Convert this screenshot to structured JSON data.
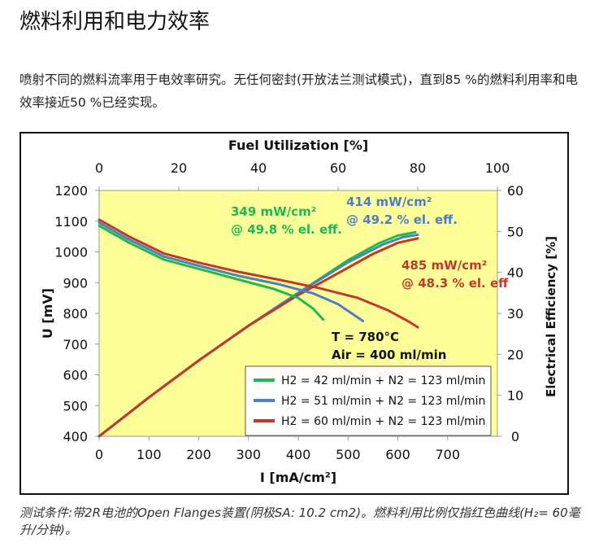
{
  "page": {
    "title": "燃料利用和电力效率",
    "intro": "喷射不同的燃料流率用于电效率研究。无任何密封(开放法兰测试模式)，直到85 %的燃料利用率和电效率接近50 %已经实现。",
    "caption": "测试条件:带2R电池的Open Flanges装置(阴极SA: 10.2 cm2)。燃料利用比例仅指红色曲线(H₂= 60毫升/分钟)。"
  },
  "chart_data": {
    "type": "line",
    "title": "",
    "xlabel": "I [mA/cm²]",
    "ylabel": "U [mV]",
    "y2label": "Electrical Efficiency [%]",
    "top_xlabel": "Fuel Utilization [%]",
    "xlim": [
      0,
      800
    ],
    "ylim": [
      400,
      1200
    ],
    "y2lim": [
      0,
      60
    ],
    "top_xlim": [
      0,
      100
    ],
    "x_ticks": [
      "0",
      "100",
      "200",
      "300",
      "400",
      "500",
      "600",
      "700"
    ],
    "y_ticks": [
      "400",
      "500",
      "600",
      "700",
      "800",
      "900",
      "1000",
      "1100",
      "1200"
    ],
    "y2_ticks": [
      "0",
      "10",
      "20",
      "30",
      "40",
      "50",
      "60"
    ],
    "top_x_ticks": [
      "0",
      "20",
      "40",
      "60",
      "80",
      "100"
    ],
    "grid": false,
    "background_color": "#FFFF99",
    "legend_placement": "bottom-right",
    "series": [
      {
        "name": "H2 = 42 ml/min + N2 = 123 ml/min",
        "color": "#1DB954",
        "voltage": {
          "x": [
            0,
            60,
            130,
            200,
            280,
            350,
            400,
            430,
            450
          ],
          "y": [
            1085,
            1030,
            975,
            945,
            910,
            880,
            850,
            815,
            780
          ]
        },
        "efficiency": {
          "x": [
            0,
            100,
            200,
            300,
            400,
            500,
            560,
            600,
            635
          ],
          "y": [
            0,
            9.5,
            18.5,
            27,
            35,
            43,
            47,
            49,
            49.8
          ]
        }
      },
      {
        "name": "H2 = 51 ml/min + N2 = 123 ml/min",
        "color": "#4F7FC0",
        "voltage": {
          "x": [
            0,
            60,
            130,
            200,
            280,
            360,
            430,
            480,
            530
          ],
          "y": [
            1095,
            1040,
            985,
            955,
            922,
            895,
            865,
            830,
            775
          ]
        },
        "efficiency": {
          "x": [
            0,
            100,
            200,
            300,
            400,
            500,
            570,
            610,
            640
          ],
          "y": [
            0,
            9.5,
            18.5,
            27,
            35,
            42.5,
            46.8,
            48.6,
            49.2
          ]
        }
      },
      {
        "name": "H2 = 60 ml/min + N2 = 123 ml/min",
        "color": "#C0392B",
        "voltage": {
          "x": [
            0,
            60,
            130,
            200,
            280,
            360,
            440,
            520,
            580,
            620,
            640
          ],
          "y": [
            1105,
            1050,
            995,
            965,
            935,
            910,
            883,
            850,
            810,
            775,
            755
          ]
        },
        "efficiency": {
          "x": [
            0,
            100,
            200,
            300,
            400,
            480,
            550,
            600,
            640
          ],
          "y": [
            0,
            9.5,
            18.5,
            27,
            34.5,
            39.8,
            44.5,
            47.2,
            48.3
          ]
        }
      }
    ],
    "annotations": [
      {
        "id": "green",
        "line1": "349 mW/cm²",
        "line2": "@ 49.8 % el. eff.",
        "color": "#1DB954"
      },
      {
        "id": "blue",
        "line1": "414 mW/cm²",
        "line2": "@ 49.2 % el. eff.",
        "color": "#4F7FC0"
      },
      {
        "id": "red",
        "line1": "485 mW/cm²",
        "line2": "@ 48.3 % el. eff",
        "color": "#C0392B"
      },
      {
        "id": "conditions",
        "line1": "T = 780°C",
        "line2": "Air = 400 ml/min",
        "color": "#111111"
      }
    ]
  }
}
